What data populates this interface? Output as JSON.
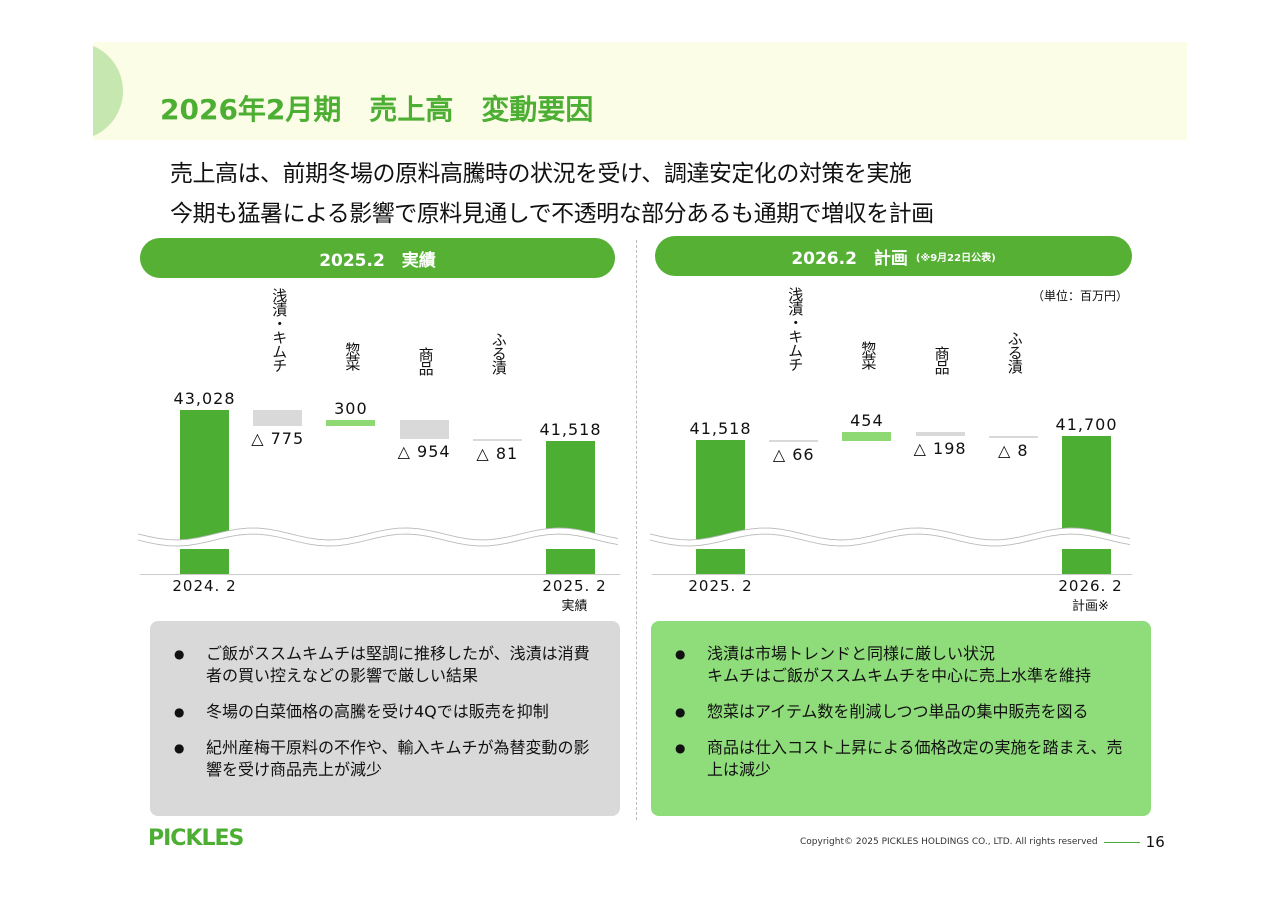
{
  "title": "2026年2月期　売上高　変動要因",
  "subtitle_lines": [
    "売上高は、前期冬場の原料高騰時の状況を受け、調達安定化の対策を実施",
    "今期も猛暑による影響で原料見通しで不透明な部分あるも通期で増収を計画"
  ],
  "colors": {
    "total": "#4cae33",
    "increase": "#8fd975",
    "decrease": "#d9d9d9",
    "accent": "#55b033"
  },
  "unit_label": "（単位：百万円）",
  "chart_data": [
    {
      "type": "waterfall",
      "header": "2025.2　実績",
      "header_note": "",
      "categories": [
        "2024. 2",
        "浅漬・キムチ",
        "惣菜",
        "商品",
        "ふる漬",
        "2025. 2"
      ],
      "x_sublabels": [
        "",
        "",
        "",
        "",
        "",
        "実績"
      ],
      "values": [
        43028,
        -775,
        300,
        -954,
        -81,
        41518
      ],
      "labels": [
        "43,028",
        "△ 775",
        "300",
        "△ 954",
        "△ 81",
        "41,518"
      ],
      "kinds": [
        "total",
        "delta",
        "delta",
        "delta",
        "delta",
        "total"
      ],
      "axis_break": true
    },
    {
      "type": "waterfall",
      "header": "2026.2　計画",
      "header_note": "(※9月22日公表)",
      "categories": [
        "2025. 2",
        "浅漬・キムチ",
        "惣菜",
        "商品",
        "ふる漬",
        "2026. 2"
      ],
      "x_sublabels": [
        "",
        "",
        "",
        "",
        "",
        "計画※"
      ],
      "values": [
        41518,
        -66,
        454,
        -198,
        -8,
        41700
      ],
      "labels": [
        "41,518",
        "△ 66",
        "454",
        "△ 198",
        "△ 8",
        "41,700"
      ],
      "kinds": [
        "total",
        "delta",
        "delta",
        "delta",
        "delta",
        "total"
      ],
      "axis_break": true
    }
  ],
  "notes_left": [
    "ご飯がススムキムチは堅調に推移したが、浅漬は消費者の買い控えなどの影響で厳しい結果",
    "冬場の白菜価格の高騰を受け4Qでは販売を抑制",
    "紀州産梅干原料の不作や、輸入キムチが為替変動の影響を受け商品売上が減少"
  ],
  "notes_right": [
    "浅漬は市場トレンドと同様に厳しい状況\nキムチはご飯がススムキムチを中心に売上水準を維持",
    "惣菜はアイテム数を削減しつつ単品の集中販売を図る",
    "商品は仕入コスト上昇による価格改定の実施を踏まえ、売上は減少"
  ],
  "footer": {
    "logo": "PICKLES",
    "copyright": "Copyright© 2025 PICKLES HOLDINGS CO., LTD. All rights reserved",
    "page": "16"
  }
}
